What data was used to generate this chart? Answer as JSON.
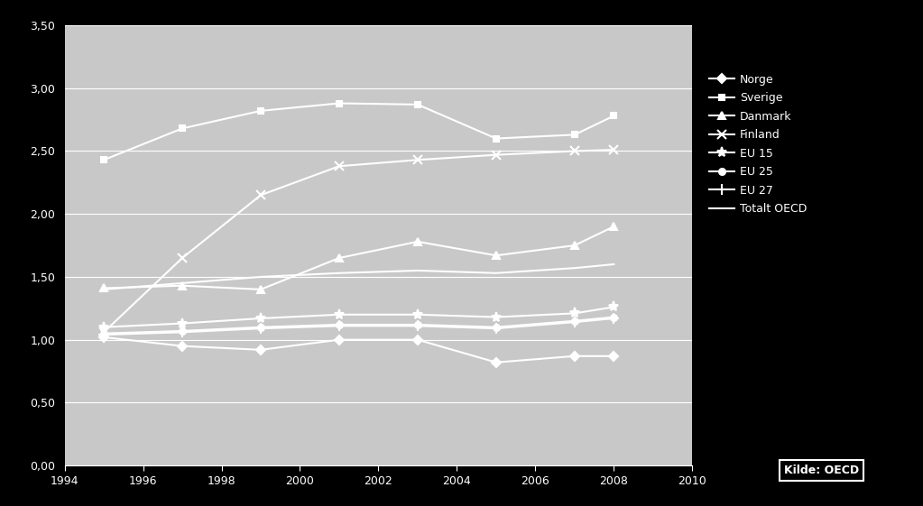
{
  "background_color": "#000000",
  "plot_bg_color": "#c8c8c8",
  "text_color": "#ffffff",
  "grid_color": "#ffffff",
  "line_color": "#ffffff",
  "series": {
    "Norge": {
      "years": [
        1995,
        1997,
        1999,
        2001,
        2003,
        2005,
        2007,
        2008
      ],
      "values": [
        1.02,
        0.95,
        0.92,
        1.0,
        1.0,
        0.82,
        0.87,
        0.87
      ],
      "marker": "D",
      "markersize": 5
    },
    "Sverige": {
      "years": [
        1995,
        1997,
        1999,
        2001,
        2003,
        2005,
        2007,
        2008
      ],
      "values": [
        2.43,
        2.68,
        2.82,
        2.88,
        2.87,
        2.6,
        2.63,
        2.78
      ],
      "marker": "s",
      "markersize": 5
    },
    "Danmark": {
      "years": [
        1995,
        1997,
        1999,
        2001,
        2003,
        2005,
        2007,
        2008
      ],
      "values": [
        1.41,
        1.43,
        1.4,
        1.65,
        1.78,
        1.67,
        1.75,
        1.9
      ],
      "marker": "^",
      "markersize": 6
    },
    "Finland": {
      "years": [
        1995,
        1997,
        1999,
        2001,
        2003,
        2005,
        2007,
        2008
      ],
      "values": [
        1.06,
        1.65,
        2.15,
        2.38,
        2.43,
        2.47,
        2.5,
        2.51
      ],
      "marker": "x",
      "markersize": 7
    },
    "EU 15": {
      "years": [
        1995,
        1997,
        1999,
        2001,
        2003,
        2005,
        2007,
        2008
      ],
      "values": [
        1.1,
        1.13,
        1.17,
        1.2,
        1.2,
        1.18,
        1.21,
        1.26
      ],
      "marker": "*",
      "markersize": 8
    },
    "EU 25": {
      "years": [
        1995,
        1997,
        1999,
        2001,
        2003,
        2005,
        2007,
        2008
      ],
      "values": [
        1.05,
        1.07,
        1.1,
        1.12,
        1.12,
        1.1,
        1.15,
        1.18
      ],
      "marker": "o",
      "markersize": 5
    },
    "EU 27": {
      "years": [
        1995,
        1997,
        1999,
        2001,
        2003,
        2005,
        2007,
        2008
      ],
      "values": [
        1.04,
        1.06,
        1.09,
        1.11,
        1.11,
        1.09,
        1.14,
        1.17
      ],
      "marker": "+",
      "markersize": 8
    },
    "Totalt OECD": {
      "years": [
        1995,
        1997,
        1999,
        2001,
        2003,
        2005,
        2007,
        2008
      ],
      "values": [
        1.4,
        1.45,
        1.5,
        1.53,
        1.55,
        1.53,
        1.57,
        1.6
      ],
      "marker": "None",
      "markersize": 0
    }
  },
  "xlim": [
    1994,
    2010
  ],
  "ylim": [
    0.0,
    3.5
  ],
  "yticks": [
    0.0,
    0.5,
    1.0,
    1.5,
    2.0,
    2.5,
    3.0,
    3.5
  ],
  "xticks": [
    1994,
    1996,
    1998,
    2000,
    2002,
    2004,
    2006,
    2008,
    2010
  ],
  "source_label": "Kilde: OECD"
}
